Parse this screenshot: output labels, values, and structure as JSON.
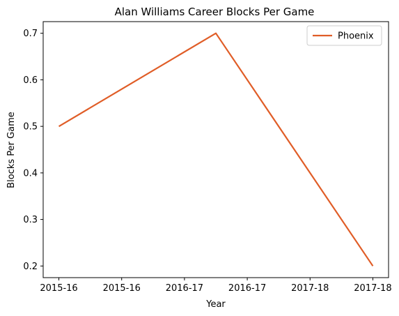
{
  "chart_data": {
    "type": "line",
    "title": "Alan Williams  Career Blocks Per Game",
    "xlabel": "Year",
    "ylabel": "Blocks Per Game",
    "x_tick_labels": [
      "2015-16",
      "2015-16",
      "2016-17",
      "2016-17",
      "2017-18",
      "2017-18"
    ],
    "x_tick_positions": [
      0,
      0.5,
      1.0,
      1.5,
      2.0,
      2.5
    ],
    "xlim": [
      -0.125,
      2.625
    ],
    "y_ticks": [
      0.2,
      0.3,
      0.4,
      0.5,
      0.6,
      0.7
    ],
    "y_tick_labels": [
      "0.2",
      "0.3",
      "0.4",
      "0.5",
      "0.6",
      "0.7"
    ],
    "ylim": [
      0.175,
      0.725
    ],
    "grid": false,
    "legend_placement": "top-right",
    "series": [
      {
        "name": "Phoenix",
        "color": "#e05d27",
        "x": [
          0,
          1.25,
          2.5
        ],
        "values": [
          0.5,
          0.7,
          0.2
        ]
      }
    ]
  }
}
